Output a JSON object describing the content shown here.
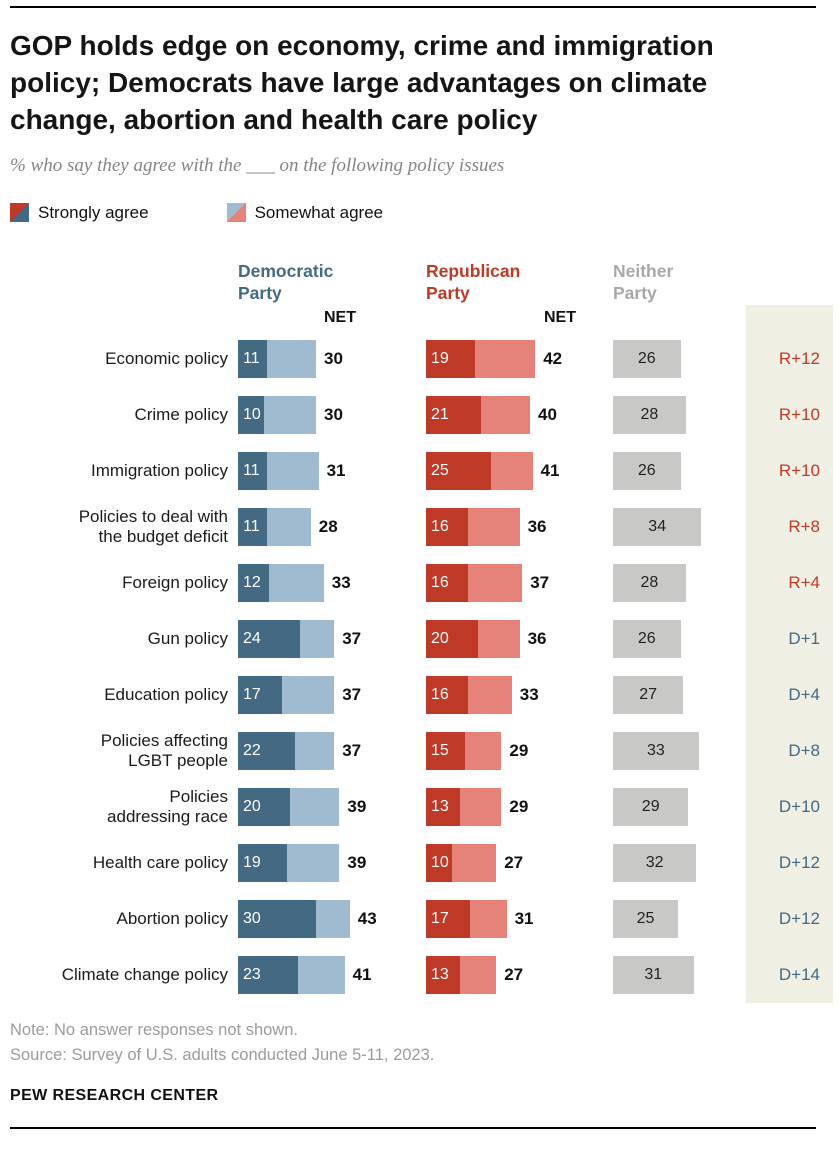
{
  "chart_data": {
    "type": "bar",
    "title": "GOP holds edge on economy, crime and immigration policy; Democrats have large advantages on climate change, abortion and health care policy",
    "subtitle": "% who say they agree with the ___ on the following policy issues",
    "unit": "%",
    "legend": [
      {
        "label": "Strongly agree"
      },
      {
        "label": "Somewhat agree"
      }
    ],
    "columns": {
      "dem": "Democratic\nParty",
      "rep": "Republican\nParty",
      "neither": "Neither\nParty",
      "net": "NET"
    },
    "rows": [
      {
        "label": "Economic policy",
        "dem_strong": 11,
        "dem_net": 30,
        "rep_strong": 19,
        "rep_net": 42,
        "neither": 26,
        "edge": "R+12"
      },
      {
        "label": "Crime policy",
        "dem_strong": 10,
        "dem_net": 30,
        "rep_strong": 21,
        "rep_net": 40,
        "neither": 28,
        "edge": "R+10"
      },
      {
        "label": "Immigration policy",
        "dem_strong": 11,
        "dem_net": 31,
        "rep_strong": 25,
        "rep_net": 41,
        "neither": 26,
        "edge": "R+10"
      },
      {
        "label": "Policies to deal with\nthe budget deficit",
        "dem_strong": 11,
        "dem_net": 28,
        "rep_strong": 16,
        "rep_net": 36,
        "neither": 34,
        "edge": "R+8"
      },
      {
        "label": "Foreign policy",
        "dem_strong": 12,
        "dem_net": 33,
        "rep_strong": 16,
        "rep_net": 37,
        "neither": 28,
        "edge": "R+4"
      },
      {
        "label": "Gun policy",
        "dem_strong": 24,
        "dem_net": 37,
        "rep_strong": 20,
        "rep_net": 36,
        "neither": 26,
        "edge": "D+1"
      },
      {
        "label": "Education policy",
        "dem_strong": 17,
        "dem_net": 37,
        "rep_strong": 16,
        "rep_net": 33,
        "neither": 27,
        "edge": "D+4"
      },
      {
        "label": "Policies affecting\nLGBT people",
        "dem_strong": 22,
        "dem_net": 37,
        "rep_strong": 15,
        "rep_net": 29,
        "neither": 33,
        "edge": "D+8"
      },
      {
        "label": "Policies\naddressing race",
        "dem_strong": 20,
        "dem_net": 39,
        "rep_strong": 13,
        "rep_net": 29,
        "neither": 29,
        "edge": "D+10"
      },
      {
        "label": "Health care policy",
        "dem_strong": 19,
        "dem_net": 39,
        "rep_strong": 10,
        "rep_net": 27,
        "neither": 32,
        "edge": "D+12"
      },
      {
        "label": "Abortion policy",
        "dem_strong": 30,
        "dem_net": 43,
        "rep_strong": 17,
        "rep_net": 31,
        "neither": 25,
        "edge": "D+12"
      },
      {
        "label": "Climate change policy",
        "dem_strong": 23,
        "dem_net": 41,
        "rep_strong": 13,
        "rep_net": 27,
        "neither": 31,
        "edge": "D+14"
      }
    ]
  },
  "footer": {
    "note": "Note: No answer responses not shown.",
    "source": "Source: Survey of U.S. adults conducted June 5-11, 2023.",
    "brand": "PEW RESEARCH CENTER"
  },
  "colors": {
    "dem_dark": "#436983",
    "dem_light": "#a0bad0",
    "rep_dark": "#bf3927",
    "rep_light": "#e5837b",
    "neither": "#c8c8c6",
    "edge_bg": "#f0efe4",
    "header_gray": "#a8a8a6",
    "text_muted": "#9b9b9b"
  }
}
